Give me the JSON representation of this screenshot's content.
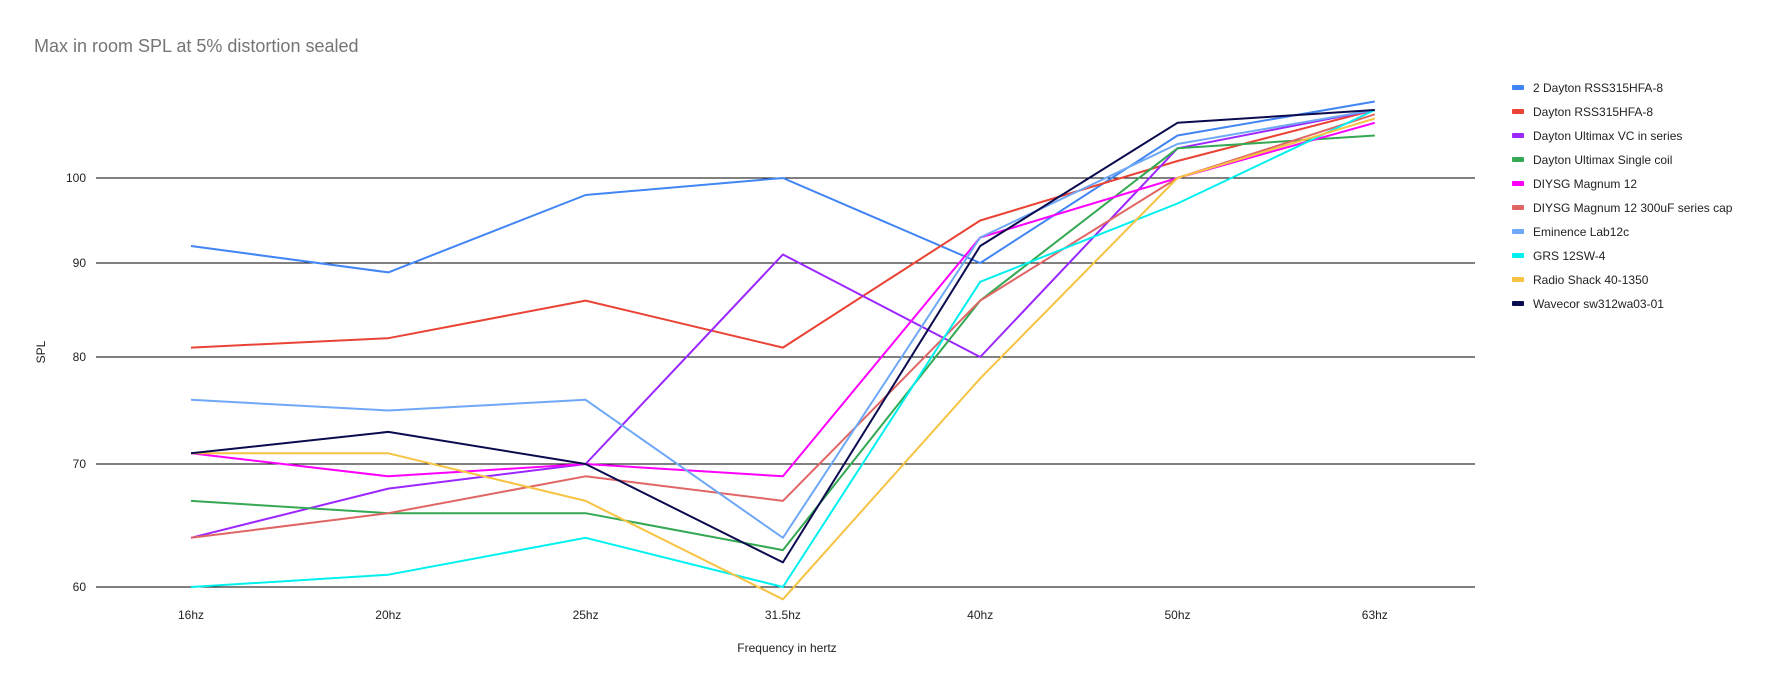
{
  "chart_data": {
    "type": "line",
    "title": "Max in room SPL at 5% distortion sealed",
    "xlabel": "Frequency in hertz",
    "ylabel": "SPL",
    "categories": [
      "16hz",
      "20hz",
      "25hz",
      "31.5hz",
      "40hz",
      "50hz",
      "63hz"
    ],
    "y_ticks": [
      60,
      70,
      80,
      90,
      100
    ],
    "ylim": [
      58.8,
      113.5
    ],
    "grid": true,
    "legend_position": "right",
    "series": [
      {
        "name": "2 Dayton RSS315HFA-8",
        "color": "#4285f4",
        "values": [
          92,
          89,
          98,
          100,
          90,
          105,
          109
        ]
      },
      {
        "name": "Dayton RSS315HFA-8",
        "color": "#ea4335",
        "values": [
          81,
          82,
          86,
          81,
          95,
          102,
          108
        ]
      },
      {
        "name": "Dayton Ultimax VC in series",
        "color": "#9c27ff",
        "values": [
          64,
          68,
          70,
          91,
          80,
          103.5,
          108
        ]
      },
      {
        "name": "Dayton Ultimax Single coil",
        "color": "#34a853",
        "values": [
          67,
          66,
          66,
          63,
          86,
          103.5,
          105
        ]
      },
      {
        "name": "DIYSG Magnum 12",
        "color": "#ff00ff",
        "values": [
          71,
          69,
          70,
          69,
          93,
          100,
          106.5
        ]
      },
      {
        "name": "DIYSG Magnum 12 300uF series cap",
        "color": "#e06666",
        "values": [
          64,
          66,
          69,
          67,
          86,
          100,
          107.5
        ]
      },
      {
        "name": "Eminence Lab12c",
        "color": "#6fa8f6",
        "values": [
          76,
          75,
          76,
          64,
          93,
          104,
          108
        ]
      },
      {
        "name": "GRS 12SW-4",
        "color": "#00f0f0",
        "values": [
          60,
          61,
          64,
          60,
          88,
          97,
          108
        ]
      },
      {
        "name": "Radio Shack 40-1350",
        "color": "#f6c342",
        "values": [
          71,
          71,
          67,
          59,
          78,
          100,
          107
        ]
      },
      {
        "name": "Wavecor sw312wa03-01",
        "color": "#0b0b4f",
        "values": [
          71,
          73,
          70,
          62,
          92,
          106.5,
          108
        ]
      }
    ]
  }
}
